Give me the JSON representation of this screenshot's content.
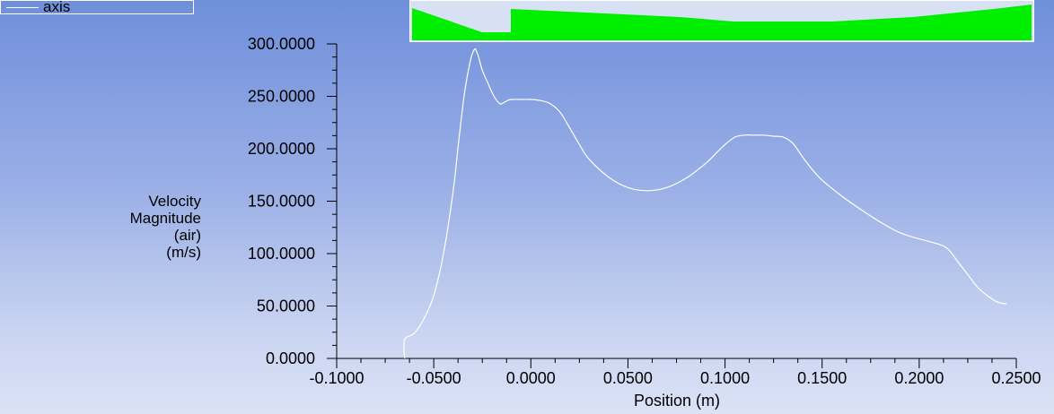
{
  "legend": {
    "label": "axis",
    "line_color": "#ffffff"
  },
  "geometry_preview": {
    "fill_color": "#00ee00",
    "background": "#d8e0f4"
  },
  "chart_data": {
    "type": "line",
    "title": "",
    "xlabel": "Position (m)",
    "ylabel_lines": [
      "Velocity",
      "Magnitude",
      "(air)",
      "(m/s)"
    ],
    "xlim": [
      -0.1,
      0.25
    ],
    "ylim": [
      0,
      300
    ],
    "x_ticks": [
      "-0.1000",
      "-0.0500",
      "0.0000",
      "0.0500",
      "0.1000",
      "0.1500",
      "0.2000",
      "0.2500"
    ],
    "y_ticks": [
      "0.0000",
      "50.0000",
      "100.0000",
      "150.0000",
      "200.0000",
      "250.0000",
      "300.0000"
    ],
    "grid": false,
    "legend_position": "top-left",
    "series": [
      {
        "name": "axis",
        "color": "#ffffff",
        "x": [
          -0.065,
          -0.065,
          -0.06,
          -0.055,
          -0.05,
          -0.045,
          -0.04,
          -0.037,
          -0.034,
          -0.031,
          -0.029,
          -0.028,
          -0.027,
          -0.025,
          -0.022,
          -0.019,
          -0.016,
          -0.014,
          -0.012,
          -0.01,
          -0.005,
          0.0,
          0.005,
          0.01,
          0.015,
          0.02,
          0.025,
          0.03,
          0.04,
          0.05,
          0.06,
          0.07,
          0.08,
          0.09,
          0.095,
          0.1,
          0.105,
          0.11,
          0.115,
          0.12,
          0.125,
          0.13,
          0.135,
          0.14,
          0.145,
          0.15,
          0.16,
          0.17,
          0.18,
          0.19,
          0.2,
          0.21,
          0.215,
          0.22,
          0.225,
          0.23,
          0.235,
          0.24,
          0.245
        ],
        "y": [
          0,
          18,
          24,
          38,
          60,
          100,
          160,
          210,
          255,
          285,
          295,
          293,
          288,
          275,
          262,
          250,
          243,
          244,
          246,
          247,
          247,
          247,
          246,
          243,
          235,
          220,
          204,
          190,
          173,
          163,
          160,
          163,
          172,
          186,
          195,
          204,
          211,
          213,
          213,
          213,
          212,
          211,
          205,
          192,
          180,
          170,
          155,
          142,
          130,
          120,
          114,
          109,
          104,
          92,
          80,
          68,
          60,
          54,
          52
        ]
      }
    ]
  }
}
